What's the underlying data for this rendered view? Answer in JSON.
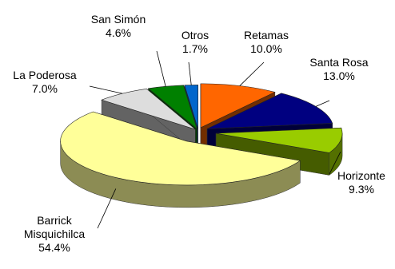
{
  "chart_data": {
    "type": "pie",
    "style": "3d-exploded",
    "title": "",
    "slices": [
      {
        "name": "Retamas",
        "value": 10.0,
        "label": "10.0%",
        "color": "#FF6600"
      },
      {
        "name": "Santa Rosa",
        "value": 13.0,
        "label": "13.0%",
        "color": "#000080"
      },
      {
        "name": "Horizonte",
        "value": 9.3,
        "label": "9.3%",
        "color": "#99CC00"
      },
      {
        "name": "Barrick Misquichilca",
        "value": 54.4,
        "label": "54.4%",
        "color": "#FFFF99"
      },
      {
        "name": "La Poderosa",
        "value": 7.0,
        "label": "7.0%",
        "color": "#DDDDDD"
      },
      {
        "name": "San Simón",
        "value": 4.6,
        "label": "4.6%",
        "color": "#008000"
      },
      {
        "name": "Otros",
        "value": 1.7,
        "label": "1.7%",
        "color": "#0066CC"
      }
    ]
  }
}
